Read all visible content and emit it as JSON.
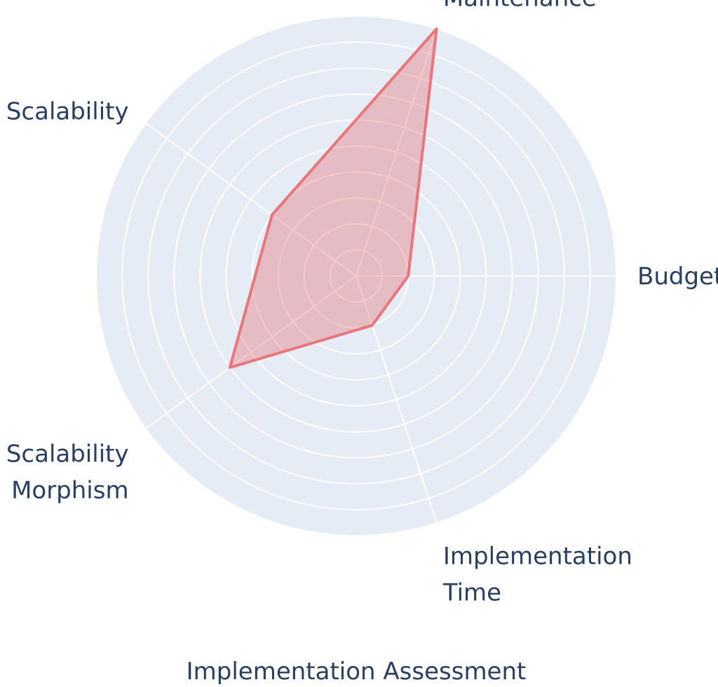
{
  "chart_data": {
    "type": "radar",
    "title": "Implementation Assessment",
    "axes": [
      {
        "label_lines": [
          "Budget"
        ]
      },
      {
        "label_lines": [
          "Maintenance"
        ]
      },
      {
        "label_lines": [
          "Scalability"
        ]
      },
      {
        "label_lines": [
          "Scalability",
          "Morphism"
        ]
      },
      {
        "label_lines": [
          "Implementation",
          "Time"
        ]
      }
    ],
    "axis_direction": "counterclockwise",
    "start_axis_angle_deg": 0,
    "radial_range": [
      0,
      5
    ],
    "radial_gridlines": 5,
    "radial_ticks_shown": false,
    "series": [
      {
        "values": [
          1,
          5,
          2,
          3,
          1
        ],
        "line_color": "#e8767a",
        "fill_color": "#e8767a",
        "fill_opacity": 0.4
      }
    ],
    "colors": {
      "polar_background": "#e5ecf6",
      "gridline": "#ffffff",
      "text": "#2a3f5f"
    },
    "legend": "none",
    "grid": true
  }
}
